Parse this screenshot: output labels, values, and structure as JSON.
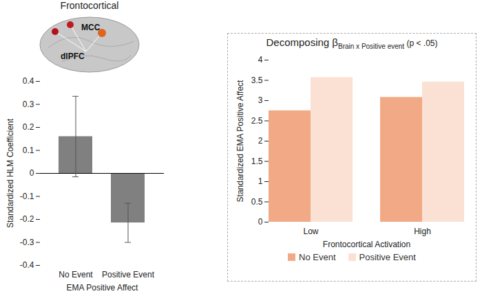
{
  "chart_data": [
    {
      "type": "bar",
      "title": "Frontocortical",
      "annotations": [
        "MCC",
        "dlPFC"
      ],
      "categories": [
        "No Event",
        "Positive Event"
      ],
      "values": [
        0.16,
        -0.215
      ],
      "errors": [
        0.175,
        0.085
      ],
      "color": "#808080",
      "xlabel": "EMA Positive Affect",
      "ylabel": "Standardized HLM Coefficient",
      "ylim": [
        -0.4,
        0.4
      ],
      "yticks": [
        -0.4,
        -0.3,
        -0.2,
        -0.1,
        0,
        0.1,
        0.2,
        0.3,
        0.4
      ]
    },
    {
      "type": "bar",
      "title": "Decomposing β",
      "title_subscript": "Brain x Positive event",
      "subtitle": "(p < .05)",
      "categories": [
        "Low",
        "High"
      ],
      "series": [
        {
          "name": "No Event",
          "color": "#f2aa86",
          "values": [
            2.75,
            3.08
          ]
        },
        {
          "name": "Positive Event",
          "color": "#fbe1d3",
          "values": [
            3.57,
            3.46
          ]
        }
      ],
      "xlabel": "Frontocortical Activation",
      "ylabel": "Standardized EMA Positive Affect",
      "ylim": [
        0,
        4
      ],
      "yticks": [
        0,
        0.5,
        1,
        1.5,
        2,
        2.5,
        3,
        3.5,
        4
      ],
      "legend": "bottom"
    }
  ]
}
